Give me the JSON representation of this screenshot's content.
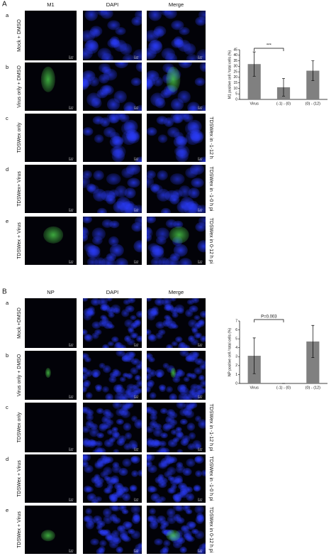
{
  "figure": {
    "panel_A": {
      "label": "A",
      "columns": [
        "M1",
        "DAPI",
        "Merge"
      ],
      "rows": [
        {
          "letter": "a",
          "label": "Mock + DMSO"
        },
        {
          "letter": "b",
          "label": "Virus only + DMSO"
        },
        {
          "letter": "c",
          "label": "TDSWex only",
          "side_label": "TDSWex in -1-12 h"
        },
        {
          "letter": "d",
          "label": "TDSWex+ Virus",
          "side_label": "TDSWex in -1-0 h pi"
        },
        {
          "letter": "e",
          "label": "TDSWex + Virus",
          "side_label": "TDSWex in 0-12 h pi"
        }
      ]
    },
    "panel_B": {
      "label": "B",
      "columns": [
        "NP",
        "DAPI",
        "Merge"
      ],
      "rows": [
        {
          "letter": "a",
          "label": "Mock +DMSO"
        },
        {
          "letter": "b",
          "label": "Virus only + DMSO"
        },
        {
          "letter": "c",
          "label": "TDSWex only",
          "side_label": "TDSWex in -1-12 h pi"
        },
        {
          "letter": "d",
          "label": "TDSWex + Virus",
          "side_label": "TDSWex in -1-0 h pi"
        },
        {
          "letter": "e",
          "label": "TDSWex + Virus",
          "side_label": "TDSWex in 0-12 h pi"
        }
      ]
    },
    "scale_bar_label": "10 μm"
  },
  "chart_data": [
    {
      "type": "bar",
      "y_label": "M1 positive cell / total cells (%)",
      "categories": [
        "Virus",
        "(-1) - (0)",
        "(0) - (12)"
      ],
      "values": [
        32,
        11,
        26
      ],
      "errors": [
        11,
        8,
        9
      ],
      "color": "#808080",
      "ylim": [
        0,
        45
      ],
      "yticks": [
        0,
        5,
        10,
        15,
        20,
        25,
        30,
        35,
        40,
        45
      ],
      "annotation": "***"
    },
    {
      "type": "bar",
      "y_label": "NP positive cell / total cells (%)",
      "categories": [
        "Virus",
        "(-1) - (0)",
        "(0) - (12)"
      ],
      "values": [
        3.1,
        0,
        4.7
      ],
      "errors": [
        2,
        0,
        1.8
      ],
      "color": "#808080",
      "ylim": [
        0,
        7
      ],
      "yticks": [
        0,
        1,
        2,
        3,
        4,
        5,
        6,
        7
      ],
      "annotation": "P=0.003"
    }
  ]
}
